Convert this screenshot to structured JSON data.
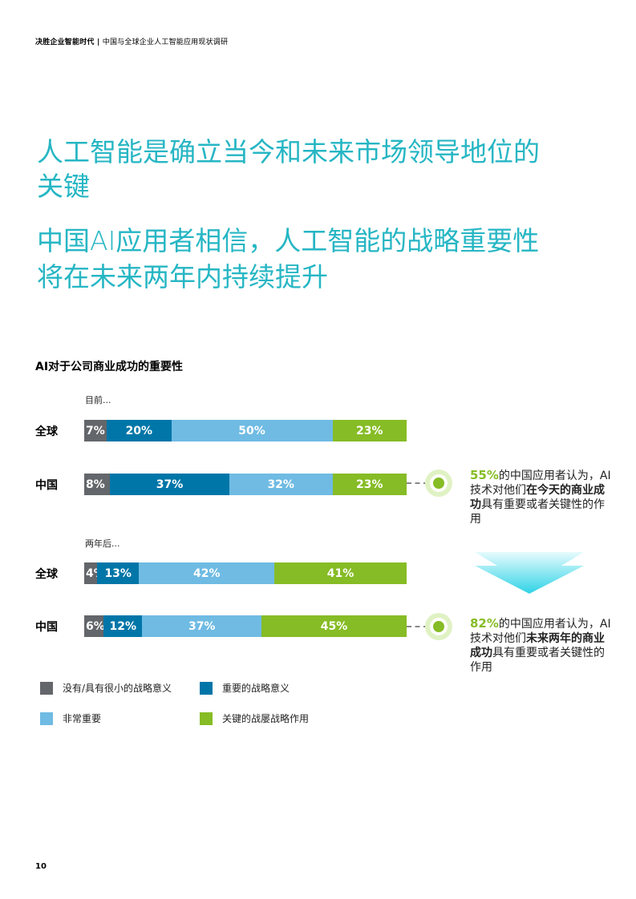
{
  "header": {
    "title": "决胜企业智能时代",
    "separator": " | ",
    "subtitle": "中国与全球企业人工智能应用现状调研"
  },
  "headline": {
    "line1": "人工智能是确立当今和未来市场领导地位的",
    "line2": "关键",
    "line3": "中国AI应用者相信，人工智能的战略重要性",
    "line4": "将在未来两年内持续提升"
  },
  "colors": {
    "accent": "#26b6c4",
    "gray": "#63666a",
    "darkblue": "#0076a8",
    "lightblue": "#6fbbe3",
    "green": "#86bc25"
  },
  "chart_data": {
    "type": "bar",
    "title": "AI对于公司商业成功的重要性",
    "stacked": true,
    "groups": [
      {
        "label": "目前...",
        "rows": [
          {
            "category": "全球",
            "values": [
              7,
              20,
              50,
              23
            ]
          },
          {
            "category": "中国",
            "values": [
              8,
              37,
              32,
              23
            ]
          }
        ]
      },
      {
        "label": "两年后...",
        "rows": [
          {
            "category": "全球",
            "values": [
              4,
              13,
              42,
              41
            ]
          },
          {
            "category": "中国",
            "values": [
              6,
              12,
              37,
              45
            ]
          }
        ]
      }
    ],
    "series": [
      {
        "name": "没有/具有很小的战略意义",
        "color": "#63666a"
      },
      {
        "name": "重要的战略意义",
        "color": "#0076a8"
      },
      {
        "name": "非常重要",
        "color": "#6fbbe3"
      },
      {
        "name": "关键的战屡战略作用",
        "color": "#86bc25"
      }
    ],
    "value_suffix": "%"
  },
  "callouts": [
    {
      "pct": "55%",
      "pre": "的中国应用者认为，AI技术对他们",
      "bold": "在今天的商业成功",
      "post": "具有重要或者关键性的作用"
    },
    {
      "pct": "82%",
      "pre": "的中国应用者认为，AI技术对他们",
      "bold": "未来两年的商业成功",
      "post": "具有重要或者关键性的作用"
    }
  ],
  "page_number": "10"
}
